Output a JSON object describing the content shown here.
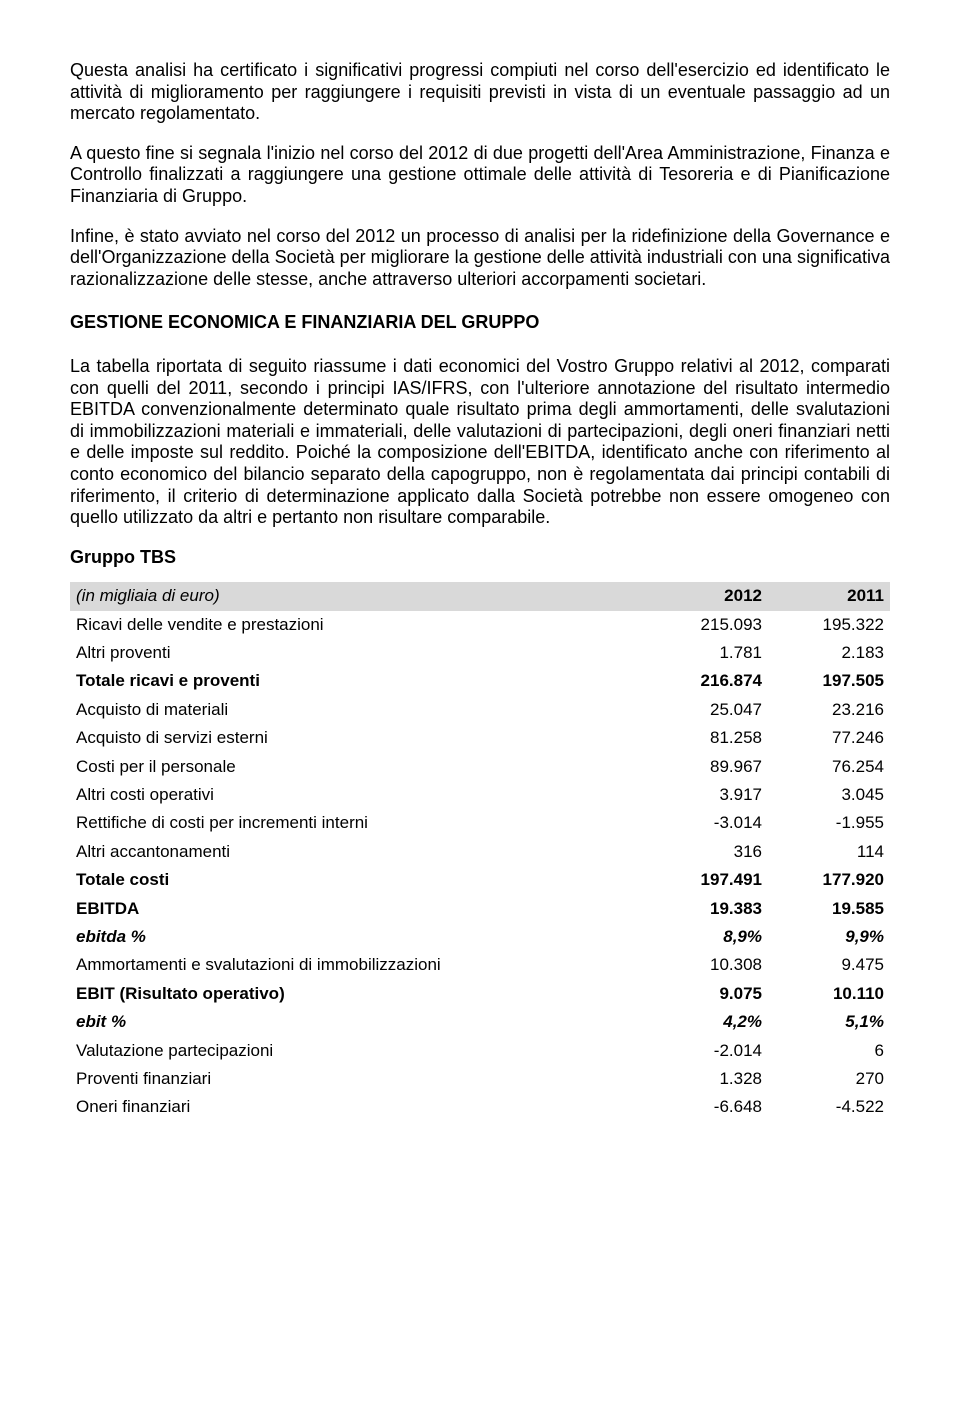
{
  "paragraphs": {
    "p1": "Questa analisi ha certificato i significativi progressi compiuti nel corso dell'esercizio ed identificato le attività di miglioramento per raggiungere i requisiti previsti in vista di un eventuale passaggio ad un mercato regolamentato.",
    "p2": "A questo fine si segnala l'inizio nel corso del 2012 di due progetti dell'Area Amministrazione, Finanza e Controllo finalizzati a raggiungere una gestione ottimale delle attività di Tesoreria e di Pianificazione Finanziaria di Gruppo.",
    "p3": "Infine, è stato avviato nel corso del 2012 un processo di analisi per la ridefinizione della Governance e dell'Organizzazione della Società per migliorare la gestione delle attività industriali con una significativa razionalizzazione delle stesse, anche attraverso ulteriori accorpamenti societari.",
    "h1": "GESTIONE ECONOMICA E FINANZIARIA DEL GRUPPO",
    "p4": "La tabella riportata di seguito riassume i dati economici del Vostro Gruppo relativi al 2012, comparati con quelli del 2011, secondo i principi IAS/IFRS, con l'ulteriore annotazione del risultato intermedio EBITDA convenzionalmente determinato quale risultato prima degli ammortamenti, delle svalutazioni di immobilizzazioni materiali e immateriali, delle valutazioni di partecipazioni, degli oneri finanziari netti e delle imposte sul reddito. Poiché la composizione dell'EBITDA, identificato anche con riferimento al conto economico del bilancio separato della  capogruppo, non è regolamentata dai principi contabili di riferimento, il criterio di determinazione applicato dalla Società potrebbe non essere omogeneo con quello utilizzato da altri e pertanto non risultare comparabile.",
    "sub1": "Gruppo TBS"
  },
  "table": {
    "header": {
      "c1": "(in migliaia di euro)",
      "c2": "2012",
      "c3": "2011"
    },
    "rows": [
      {
        "label": "Ricavi delle vendite e prestazioni",
        "v1": "215.093",
        "v2": "195.322",
        "style": ""
      },
      {
        "label": "Altri proventi",
        "v1": "1.781",
        "v2": "2.183",
        "style": ""
      },
      {
        "label": "Totale ricavi e proventi",
        "v1": "216.874",
        "v2": "197.505",
        "style": "bold"
      },
      {
        "label": "Acquisto di materiali",
        "v1": "25.047",
        "v2": "23.216",
        "style": ""
      },
      {
        "label": "Acquisto di servizi esterni",
        "v1": "81.258",
        "v2": "77.246",
        "style": ""
      },
      {
        "label": "Costi per il personale",
        "v1": "89.967",
        "v2": "76.254",
        "style": ""
      },
      {
        "label": "Altri costi operativi",
        "v1": "3.917",
        "v2": "3.045",
        "style": ""
      },
      {
        "label": "Rettifiche di costi per incrementi interni",
        "v1": "-3.014",
        "v2": "-1.955",
        "style": ""
      },
      {
        "label": "Altri accantonamenti",
        "v1": "316",
        "v2": "114",
        "style": ""
      },
      {
        "label": "Totale costi",
        "v1": "197.491",
        "v2": "177.920",
        "style": "bold"
      },
      {
        "label": "EBITDA",
        "v1": "19.383",
        "v2": "19.585",
        "style": "bold"
      },
      {
        "label": "ebitda %",
        "v1": "8,9%",
        "v2": "9,9%",
        "style": "bolditalic"
      },
      {
        "label": "Ammortamenti e svalutazioni di immobilizzazioni",
        "v1": "10.308",
        "v2": "9.475",
        "style": ""
      },
      {
        "label": "EBIT (Risultato operativo)",
        "v1": "9.075",
        "v2": "10.110",
        "style": "bold"
      },
      {
        "label": "ebit %",
        "v1": "4,2%",
        "v2": "5,1%",
        "style": "bolditalic"
      },
      {
        "label": "Valutazione partecipazioni",
        "v1": "-2.014",
        "v2": "6",
        "style": ""
      },
      {
        "label": "Proventi finanziari",
        "v1": "1.328",
        "v2": "270",
        "style": ""
      },
      {
        "label": "Oneri finanziari",
        "v1": "-6.648",
        "v2": "-4.522",
        "style": ""
      }
    ]
  }
}
